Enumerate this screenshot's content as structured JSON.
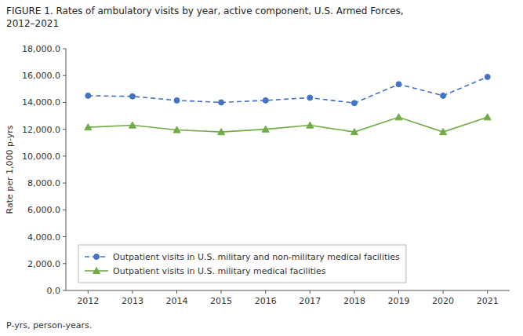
{
  "chart_data": {
    "type": "line",
    "title": "FIGURE 1. Rates of ambulatory visits by year, active component, U.S. Armed Forces,\n2012–2021",
    "y_label": "Rate per 1,000 p-yrs",
    "annotations": [
      "P-yrs, person-years."
    ],
    "x": [
      2012,
      2013,
      2014,
      2015,
      2016,
      2017,
      2018,
      2019,
      2020,
      2021
    ],
    "xlim": [
      2011.5,
      2021.5
    ],
    "xticks": [
      2012,
      2013,
      2014,
      2015,
      2016,
      2017,
      2018,
      2019,
      2020,
      2021
    ],
    "ylim": [
      0,
      18000
    ],
    "yticks": [
      {
        "value": 0,
        "label": "0.0"
      },
      {
        "value": 2000,
        "label": "2,000.0"
      },
      {
        "value": 4000,
        "label": "4,000.0"
      },
      {
        "value": 6000,
        "label": "6,000.0"
      },
      {
        "value": 8000,
        "label": "8,000.0"
      },
      {
        "value": 10000,
        "label": "10,000.0"
      },
      {
        "value": 12000,
        "label": "12,000.0"
      },
      {
        "value": 14000,
        "label": "14,000.0"
      },
      {
        "value": 16000,
        "label": "16,000.0"
      },
      {
        "value": 18000,
        "label": "18,000.0"
      }
    ],
    "grid": false,
    "legend": "lower left",
    "series": [
      {
        "name": "Outpatient visits in U.S. military and non-military medical facilities",
        "color": "#4472C4",
        "marker": "circle",
        "line_style": "dashed",
        "values": [
          14500,
          14450,
          14150,
          14000,
          14150,
          14350,
          13950,
          15350,
          14500,
          15900
        ]
      },
      {
        "name": "Outpatient visits in U.S. military medical facilities",
        "color": "#70AD47",
        "marker": "triangle",
        "line_style": "solid",
        "values": [
          12150,
          12300,
          11950,
          11800,
          12000,
          12300,
          11800,
          12900,
          11800,
          12900
        ]
      }
    ]
  }
}
